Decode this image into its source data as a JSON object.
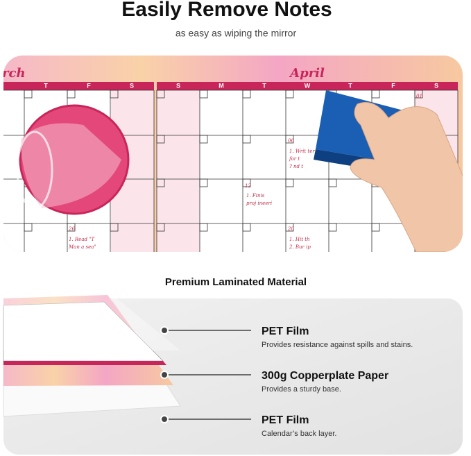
{
  "header": {
    "title": "Easily Remove Notes",
    "subtitle": "as easy as wiping the mirror"
  },
  "calendar": {
    "months": [
      "rch",
      "April"
    ],
    "weekdays_left": [
      "T",
      "F",
      "S"
    ],
    "weekdays_right": [
      "S",
      "M",
      "T",
      "W",
      "T",
      "F",
      "S"
    ],
    "dates": [
      "01",
      "06",
      "12",
      "20",
      "26"
    ],
    "notes": [
      "1. Read \"T",
      "Man a   sea\"",
      "1. Writ    ter",
      "for t",
      "?     nd t",
      "1. Finis",
      "proj    ineeri",
      "1. Hit th",
      "2. Bur    ip"
    ]
  },
  "materials": {
    "title": "Premium Laminated Material",
    "layers": [
      {
        "name": "PET  Film",
        "description": "Provides resistance against spills and stains."
      },
      {
        "name": "300g Copperplate Paper",
        "description": "Provides a sturdy base."
      },
      {
        "name": "PET  Film",
        "description": "Calendar’s back layer."
      }
    ]
  }
}
